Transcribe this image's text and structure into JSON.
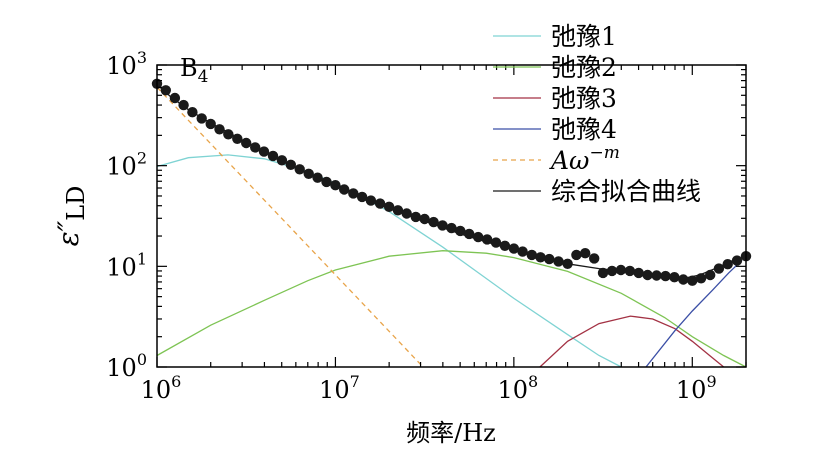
{
  "chart_data": {
    "type": "line",
    "panel_label": "B",
    "panel_label_sub": "4",
    "xlabel": "频率/Hz",
    "ylabel_main": "ε″",
    "ylabel_sub": "LD",
    "x_scale": "log",
    "y_scale": "log",
    "xlim": [
      1000000,
      2000000000
    ],
    "ylim": [
      1,
      1000
    ],
    "x_ticks": [
      {
        "value": 1000000,
        "base": "10",
        "exp": "6"
      },
      {
        "value": 10000000,
        "base": "10",
        "exp": "7"
      },
      {
        "value": 100000000,
        "base": "10",
        "exp": "8"
      },
      {
        "value": 1000000000,
        "base": "10",
        "exp": "9"
      }
    ],
    "y_ticks": [
      {
        "value": 1,
        "base": "10",
        "exp": "0"
      },
      {
        "value": 10,
        "base": "10",
        "exp": "1"
      },
      {
        "value": 100,
        "base": "10",
        "exp": "2"
      },
      {
        "value": 1000,
        "base": "10",
        "exp": "3"
      }
    ],
    "legend_position": "top-right",
    "series": [
      {
        "name": "弛豫1",
        "color": "#7fd3d3",
        "dash": "solid",
        "x": [
          1000000,
          1500000,
          2500000,
          4000000,
          7000000,
          10000000,
          20000000,
          40000000,
          100000000,
          200000000,
          300000000,
          400000000
        ],
        "y": [
          98,
          120,
          128,
          117,
          87,
          67,
          35,
          15.5,
          4.8,
          2.1,
          1.3,
          1.0
        ]
      },
      {
        "name": "弛豫2",
        "color": "#7ec454",
        "dash": "solid",
        "x": [
          1000000,
          2000000,
          4000000,
          7000000,
          10000000,
          20000000,
          40000000,
          70000000,
          100000000,
          200000000,
          400000000,
          700000000,
          1000000000,
          1500000000,
          2000000000
        ],
        "y": [
          1.3,
          2.6,
          4.6,
          7.2,
          9.2,
          12.6,
          14.3,
          13.5,
          12.2,
          8.9,
          5.4,
          3.1,
          2.0,
          1.3,
          1.0
        ]
      },
      {
        "name": "弛豫3",
        "color": "#a33244",
        "dash": "solid",
        "x": [
          140000000,
          200000000,
          300000000,
          450000000,
          600000000,
          800000000,
          1000000000,
          1250000000,
          1500000000
        ],
        "y": [
          1.0,
          1.8,
          2.7,
          3.2,
          3.0,
          2.4,
          1.8,
          1.3,
          1.0
        ]
      },
      {
        "name": "弛豫4",
        "color": "#3b4fa6",
        "dash": "solid",
        "x": [
          550000000,
          800000000,
          1000000000,
          1300000000,
          1600000000,
          1900000000
        ],
        "y": [
          1.0,
          2.3,
          3.6,
          5.8,
          8.6,
          11.5
        ]
      },
      {
        "name": "Aω⁻ᵐ",
        "name_main": "Aω",
        "name_sup": "−m",
        "color": "#e8a44a",
        "dash": "dashed",
        "x": [
          1000000,
          31000000
        ],
        "y": [
          600,
          1.0
        ]
      },
      {
        "name": "综合拟合曲线",
        "color": "#1a1a1a",
        "dash": "solid",
        "x": [
          1000000,
          1200000,
          1500000,
          2000000,
          2500000,
          3000000,
          4000000,
          5000000,
          7000000,
          10000000,
          15000000,
          20000000,
          30000000,
          50000000,
          70000000,
          100000000,
          150000000,
          200000000,
          300000000,
          400000000,
          500000000,
          700000000,
          900000000,
          1100000000,
          1400000000,
          1700000000,
          2000000000
        ],
        "y": [
          640,
          480,
          360,
          265,
          215,
          180,
          140,
          112,
          84,
          66,
          47,
          38,
          29,
          21,
          17.5,
          14.5,
          12,
          10.6,
          9.5,
          9.0,
          8.5,
          7.9,
          7.6,
          8.2,
          9.8,
          11.5,
          12.5
        ]
      }
    ],
    "scatter": {
      "name": "measured",
      "color": "#1a1a1a",
      "x": [
        1000000,
        1120000,
        1260000,
        1410000,
        1580000,
        1780000,
        2000000,
        2240000,
        2510000,
        2820000,
        3160000,
        3550000,
        3980000,
        4470000,
        5010000,
        5620000,
        6310000,
        7080000,
        7940000,
        8910000,
        10000000,
        11200000,
        12600000,
        14100000,
        15800000,
        17800000,
        20000000,
        22400000,
        25100000,
        28200000,
        31600000,
        35500000,
        39800000,
        44700000,
        50100000,
        56200000,
        63100000,
        70800000,
        79400000,
        89100000,
        100000000,
        112000000,
        126000000,
        141000000,
        158000000,
        178000000,
        200000000,
        224000000,
        251000000,
        282000000,
        316000000,
        355000000,
        398000000,
        447000000,
        501000000,
        562000000,
        631000000,
        708000000,
        794000000,
        891000000,
        1000000000,
        1120000000,
        1260000000,
        1410000000,
        1580000000,
        1780000000,
        2000000000
      ],
      "y": [
        650,
        560,
        470,
        400,
        340,
        295,
        260,
        230,
        205,
        185,
        168,
        152,
        138,
        125,
        113,
        102,
        92,
        83,
        76,
        69,
        64,
        58,
        53,
        49,
        45,
        42,
        39,
        36,
        33.5,
        31,
        29.5,
        27.5,
        25.5,
        24,
        22.5,
        21,
        19.5,
        18.5,
        17.2,
        16,
        15,
        14,
        13,
        12.3,
        11.8,
        11.2,
        10.6,
        13,
        13.5,
        12,
        8.6,
        9,
        9.2,
        9,
        8.6,
        8.2,
        8.1,
        8.0,
        7.8,
        7.4,
        7.2,
        7.6,
        8.2,
        9.5,
        10.5,
        11.4,
        12.6
      ]
    }
  }
}
